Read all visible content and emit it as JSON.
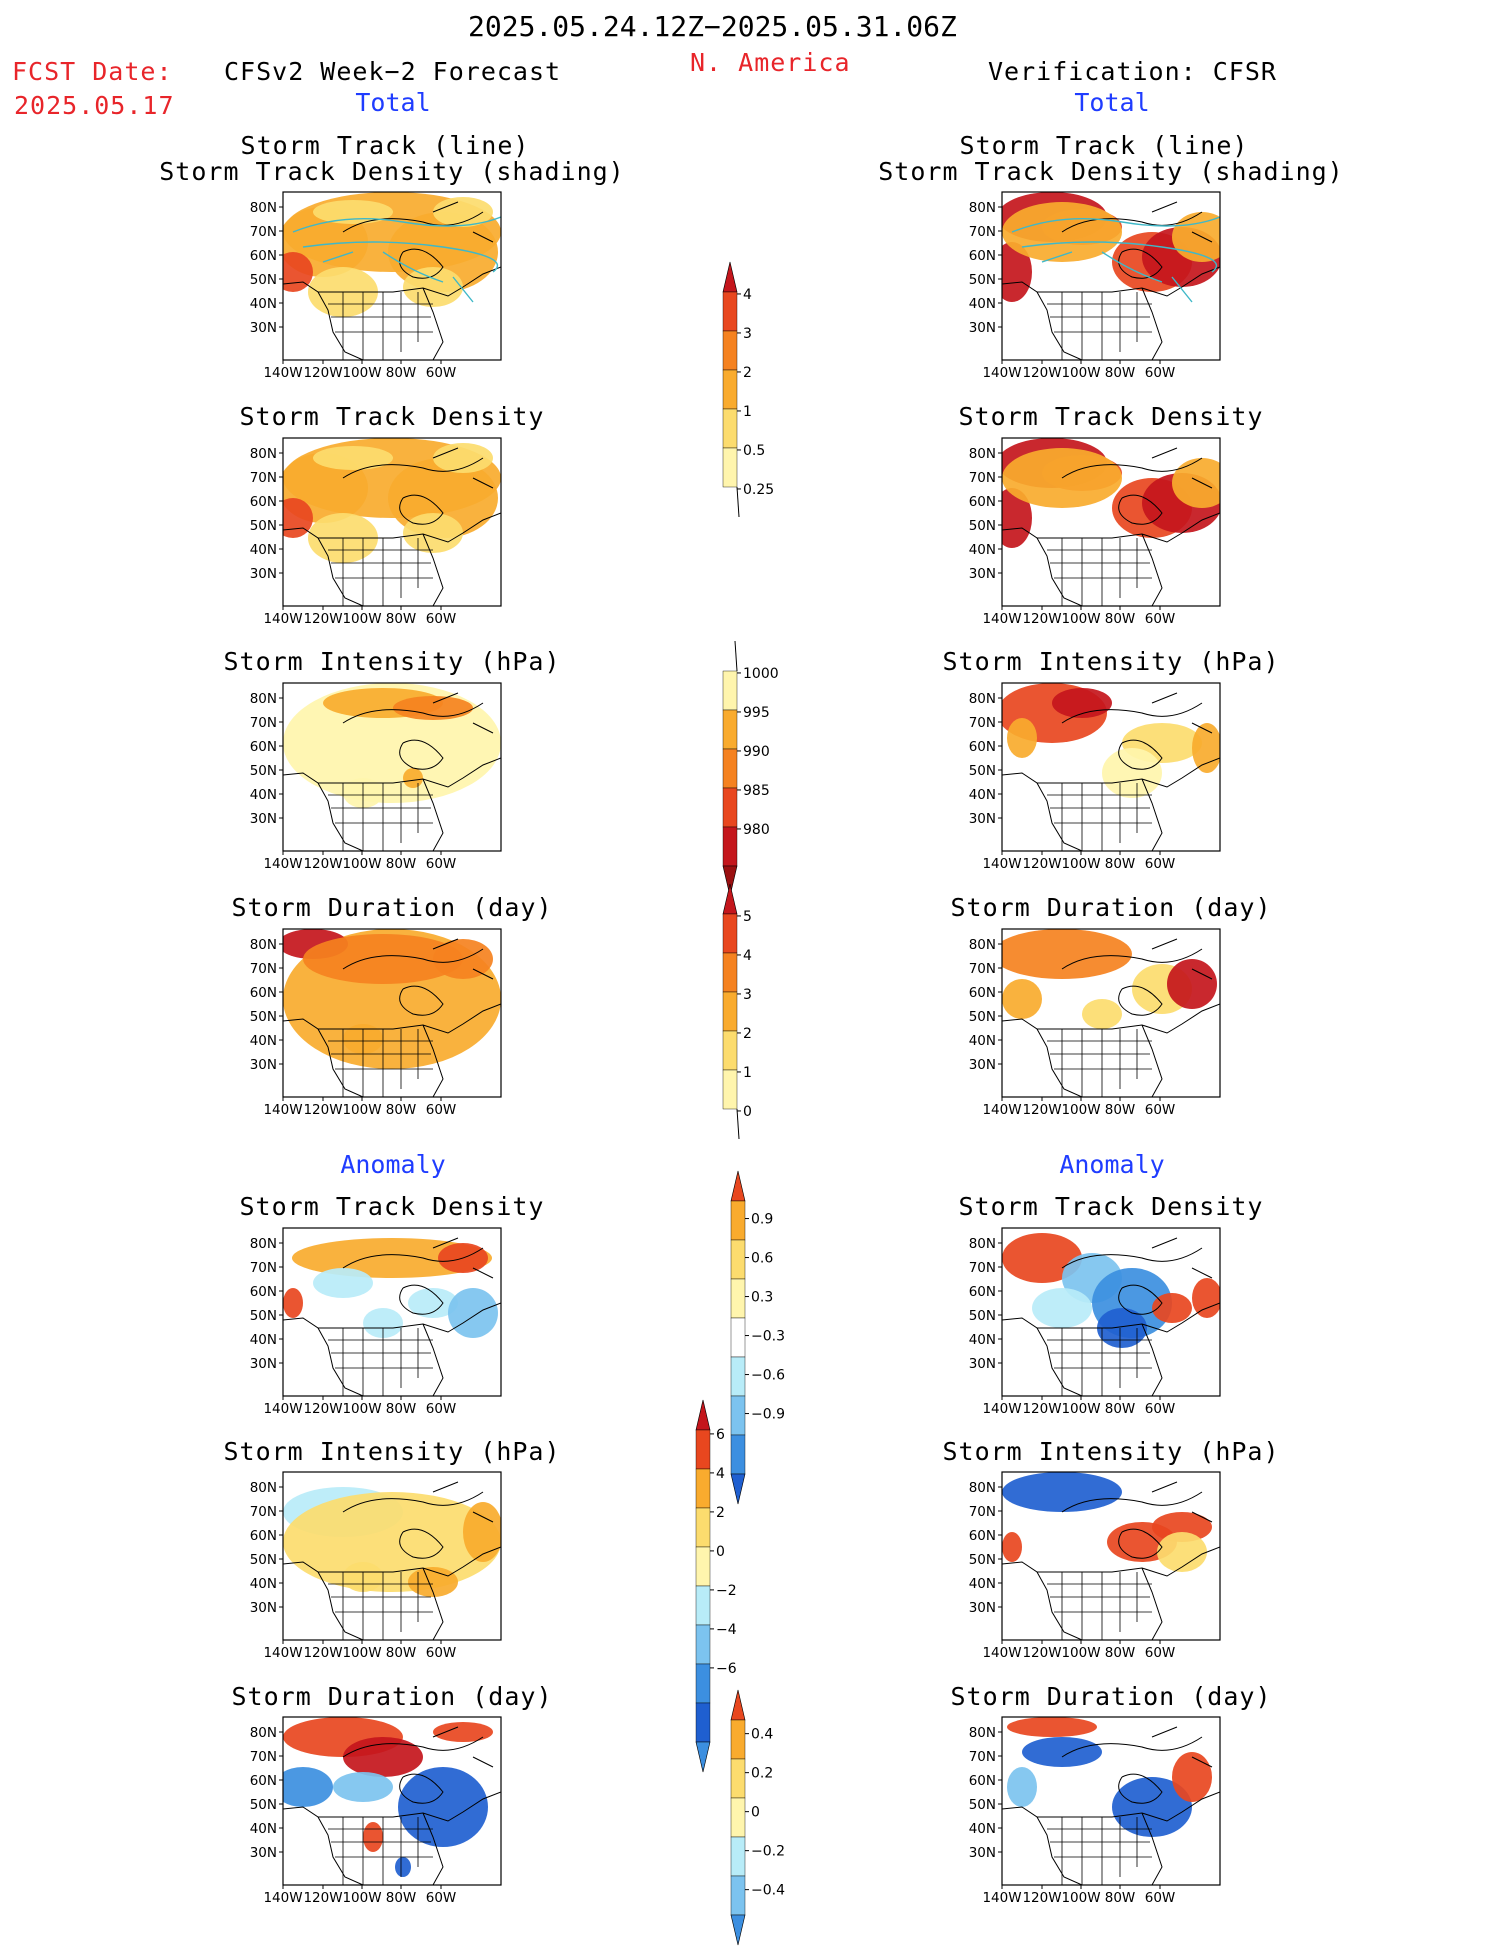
{
  "header": {
    "period": "2025.05.24.12Z−2025.05.31.06Z",
    "region": "N. America",
    "fcst_label": "FCST Date:",
    "fcst_date": "2025.05.17",
    "model_title": "CFSv2 Week−2 Forecast",
    "verif_title": "Verification: CFSR"
  },
  "sections": {
    "total": "Total",
    "anomaly": "Anomaly"
  },
  "panel_titles": {
    "track_line": "Storm Track (line)",
    "track_shading": "Storm Track Density (shading)",
    "density": "Storm Track Density",
    "intensity": "Storm Intensity (hPa)",
    "duration": "Storm Duration (day)"
  },
  "axes": {
    "lat_labels": [
      "80N",
      "70N",
      "60N",
      "50N",
      "40N",
      "30N"
    ],
    "lon_labels": [
      "140W",
      "120W",
      "100W",
      "80W",
      "60W"
    ]
  },
  "colorbars": {
    "density": {
      "labels": [
        "4",
        "3",
        "2",
        "1",
        "0.5",
        "0.25"
      ]
    },
    "intensity": {
      "labels": [
        "1000",
        "995",
        "990",
        "985",
        "980"
      ]
    },
    "duration": {
      "labels": [
        "5",
        "4",
        "3",
        "2",
        "1",
        "0"
      ]
    },
    "density_anom": {
      "labels": [
        "0.9",
        "0.6",
        "0.3",
        "−0.3",
        "−0.6",
        "−0.9"
      ]
    },
    "intensity_anom": {
      "labels": [
        "6",
        "4",
        "2",
        "0",
        "−2",
        "−4",
        "−6"
      ]
    },
    "duration_anom": {
      "labels": [
        "0.4",
        "0.2",
        "0",
        "−0.2",
        "−0.4"
      ]
    }
  },
  "colors": {
    "c1": "#fff5ad",
    "c2": "#fcdc6e",
    "c3": "#f9ab2e",
    "c4": "#f58220",
    "c5": "#e8471f",
    "c6": "#c4161c",
    "c7": "#9a0f10",
    "b1": "#b8ecf8",
    "b2": "#7cc3ef",
    "b3": "#3c8fe0",
    "b4": "#1f5fd0",
    "track": "#3fb8c8"
  }
}
